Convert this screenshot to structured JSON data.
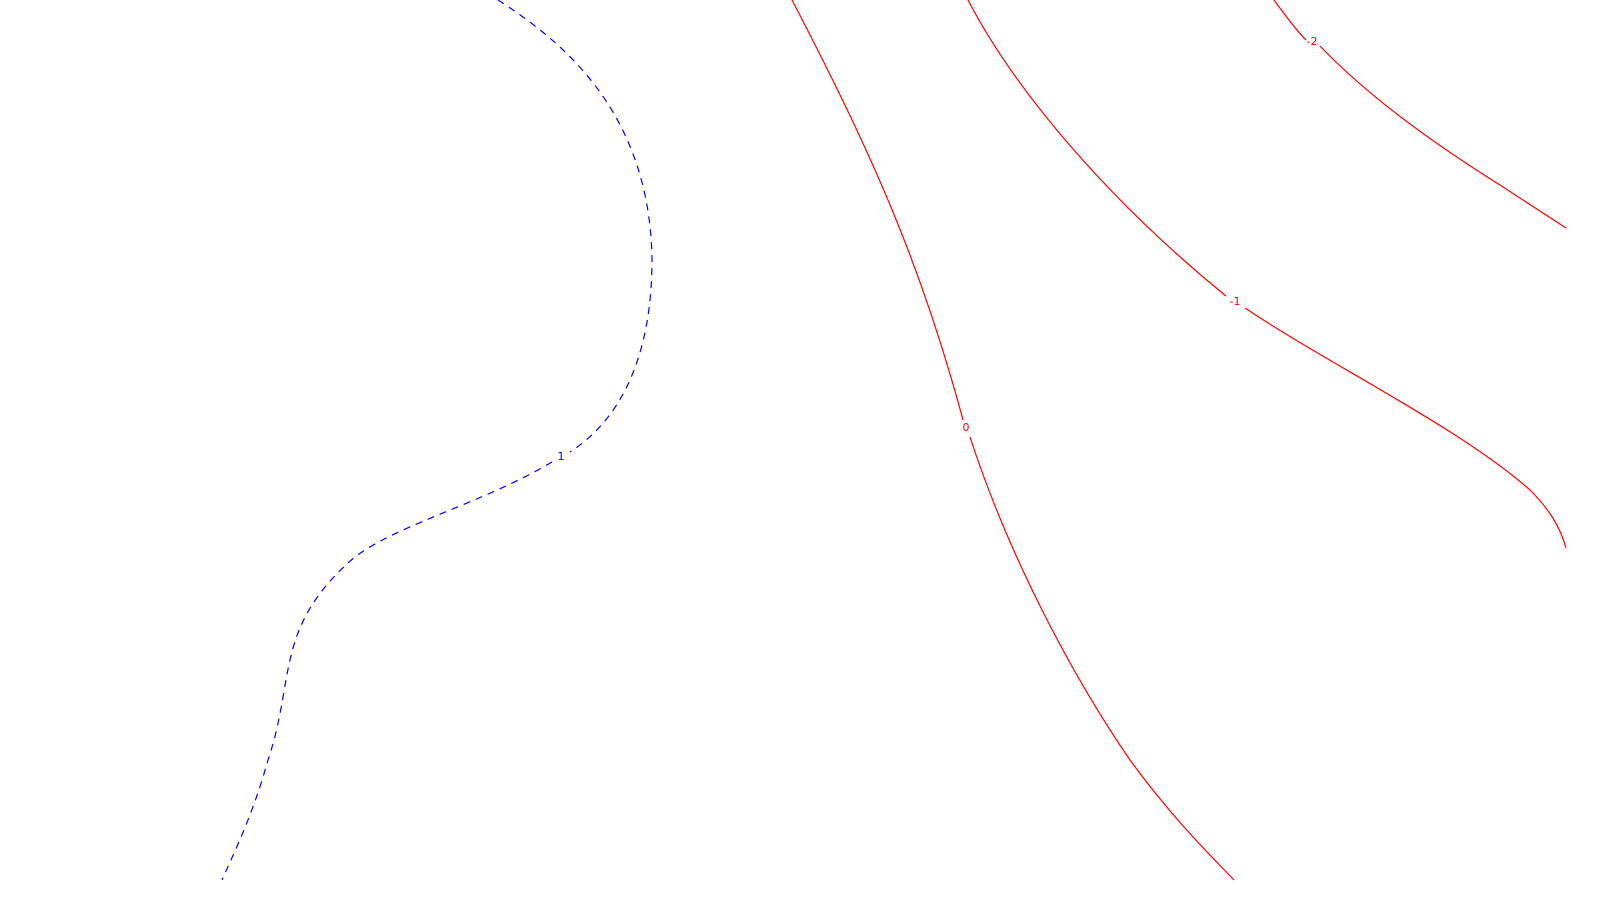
{
  "chart_data": {
    "type": "contour",
    "title": "",
    "xlabel": "",
    "ylabel": "",
    "grid": false,
    "axes_visible": false,
    "colors": {
      "background": "#ffffff",
      "positive": "#0000ff",
      "non_positive": "#ff0000"
    },
    "series": [
      {
        "name": "contour-neg2",
        "level": -2,
        "label": "-2",
        "style": "solid",
        "color": "#ff0000"
      },
      {
        "name": "contour-neg1",
        "level": -1,
        "label": "-1",
        "style": "solid",
        "color": "#ff0000"
      },
      {
        "name": "contour-zero",
        "level": 0,
        "label": "0",
        "style": "solid",
        "color": "#ff0000"
      },
      {
        "name": "contour-pos1",
        "level": 1,
        "label": "1",
        "style": "dashed",
        "color": "#0000ff"
      }
    ]
  }
}
